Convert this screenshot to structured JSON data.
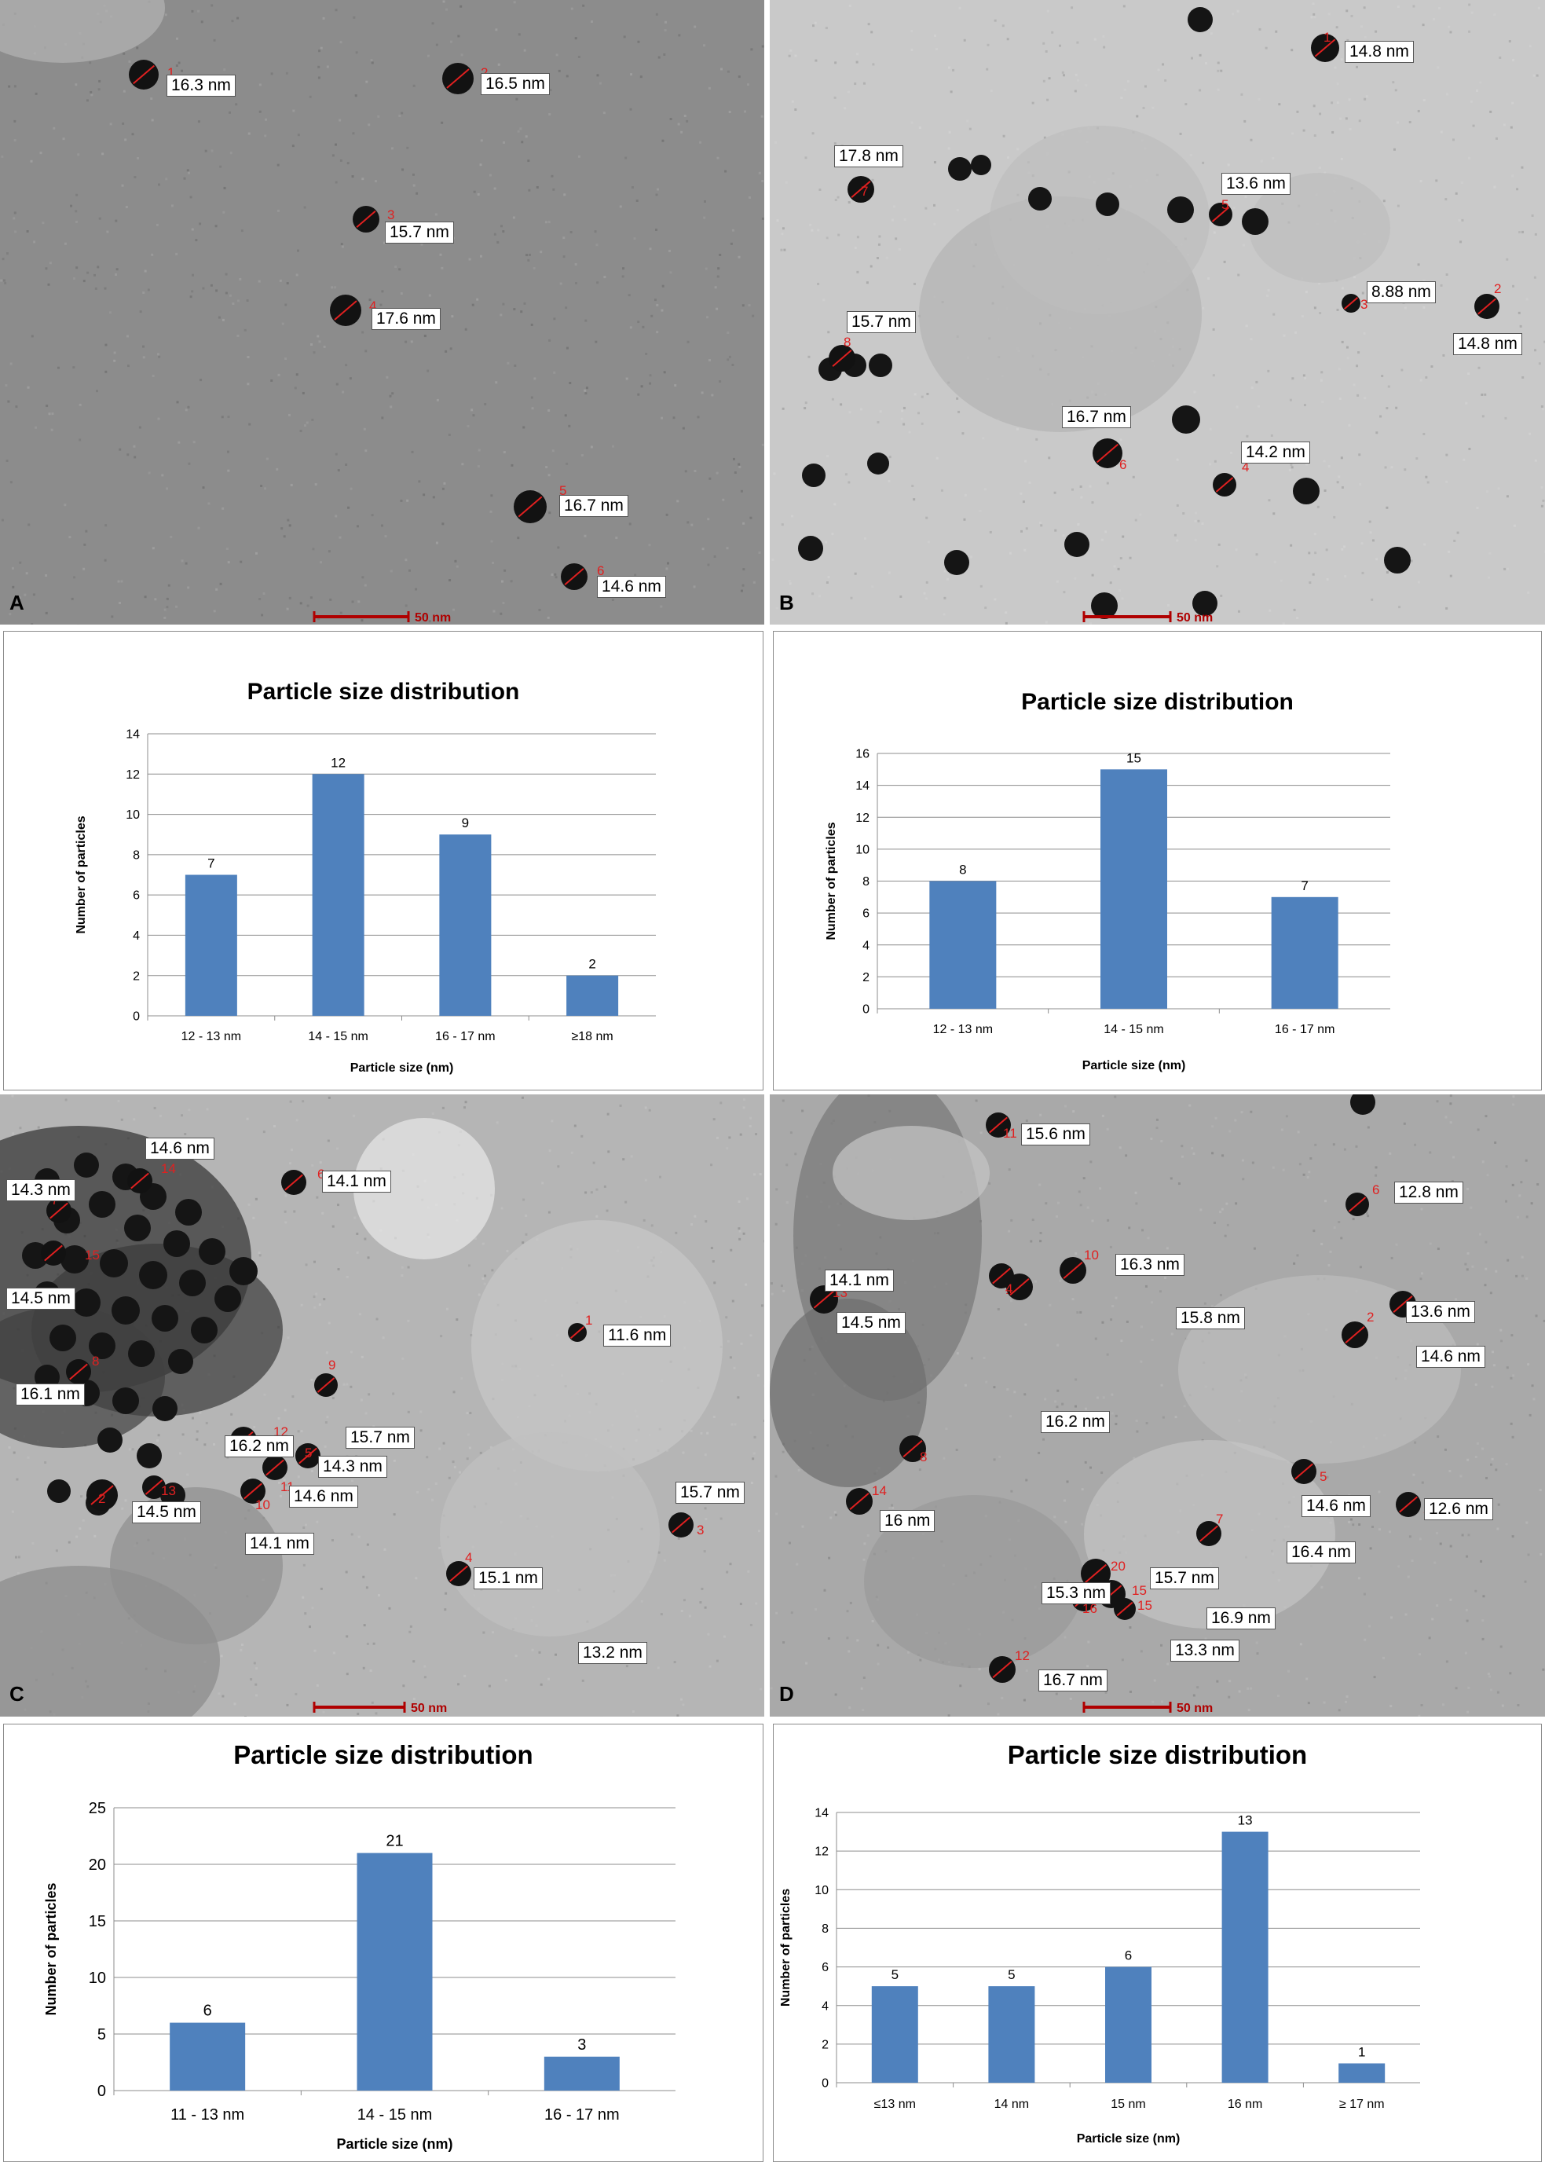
{
  "tem_panels": [
    {
      "letter": "A",
      "scale_bar_label": "50 nm",
      "tone": "#8c8c8c",
      "particles": [
        {
          "id": "1",
          "size": "16.3 nm"
        },
        {
          "id": "2",
          "size": "16.5 nm"
        },
        {
          "id": "3",
          "size": "15.7 nm"
        },
        {
          "id": "4",
          "size": "17.6 nm"
        },
        {
          "id": "5",
          "size": "16.7 nm"
        },
        {
          "id": "6",
          "size": "14.6 nm"
        }
      ]
    },
    {
      "letter": "B",
      "scale_bar_label": "50 nm",
      "tone": "#c9c9c9",
      "particles": [
        {
          "id": "1",
          "size": "14.8 nm"
        },
        {
          "id": "7",
          "size": "17.8 nm"
        },
        {
          "id": "5",
          "size": "13.6 nm"
        },
        {
          "id": "3",
          "size": "8.88 nm"
        },
        {
          "id": "2",
          "size": "14.8 nm"
        },
        {
          "id": "8",
          "size": "15.7 nm"
        },
        {
          "id": "6",
          "size": "16.7 nm"
        },
        {
          "id": "4",
          "size": "14.2 nm"
        }
      ]
    },
    {
      "letter": "C",
      "scale_bar_label": "50 nm",
      "tone": "#b5b5b5",
      "particles": [
        {
          "id": "14",
          "size": "14.6 nm"
        },
        {
          "id": "6",
          "size": "14.1 nm"
        },
        {
          "id": "7",
          "size": "14.3 nm"
        },
        {
          "id": "15",
          "size": "14.5 nm"
        },
        {
          "id": "1",
          "size": "11.6 nm"
        },
        {
          "id": "8",
          "size": "16.1 nm"
        },
        {
          "id": "9",
          "size": "15.7 nm"
        },
        {
          "id": "12",
          "size": "16.2 nm"
        },
        {
          "id": "5",
          "size": "14.3 nm"
        },
        {
          "id": "11",
          "size": "14.6 nm"
        },
        {
          "id": "13",
          "size": "14.5 nm"
        },
        {
          "id": "10",
          "size": "14.1 nm"
        },
        {
          "id": "2",
          "size": "15.7 nm"
        },
        {
          "id": "3",
          "size": "15.1 nm"
        },
        {
          "id": "4",
          "size": "13.2 nm"
        }
      ]
    },
    {
      "letter": "D",
      "scale_bar_label": "50 nm",
      "tone": "#a9a9a9",
      "particles": [
        {
          "id": "11",
          "size": "15.6 nm"
        },
        {
          "id": "6",
          "size": "12.8 nm"
        },
        {
          "id": "10",
          "size": "16.3 nm"
        },
        {
          "id": "14",
          "size": "14.1 nm"
        },
        {
          "id": "13",
          "size": "14.5 nm"
        },
        {
          "id": "9",
          "size": "15.8 nm"
        },
        {
          "id": "2",
          "size": "13.6 nm"
        },
        {
          "id": "4",
          "size": "14.6 nm"
        },
        {
          "id": "8",
          "size": "16.2 nm"
        },
        {
          "id": "14",
          "size": "16 nm"
        },
        {
          "id": "5",
          "size": "14.6 nm"
        },
        {
          "id": "3",
          "size": "12.6 nm"
        },
        {
          "id": "7",
          "size": "16.4 nm"
        },
        {
          "id": "20",
          "size": "15.7 nm"
        },
        {
          "id": "15",
          "size": "15.3 nm"
        },
        {
          "id": "15",
          "size": "16.9 nm"
        },
        {
          "id": "16",
          "size": "13.3 nm"
        },
        {
          "id": "12",
          "size": "16.7 nm"
        }
      ]
    }
  ],
  "chart_data": [
    {
      "type": "bar",
      "title": "Particle size distribution",
      "xlabel": "Particle size (nm)",
      "ylabel": "Number of particles",
      "categories": [
        "12 - 13 nm",
        "14 - 15 nm",
        "16 - 17 nm",
        "≥18 nm"
      ],
      "values": [
        7,
        12,
        9,
        2
      ],
      "ylim": [
        0,
        14
      ],
      "yticks": [
        0,
        2,
        4,
        6,
        8,
        10,
        12,
        14
      ],
      "grid": true,
      "bar_color": "#4f81bd"
    },
    {
      "type": "bar",
      "title": "Particle size distribution",
      "xlabel": "Particle size (nm)",
      "ylabel": "Number of particles",
      "categories": [
        "12 - 13 nm",
        "14 - 15 nm",
        "16 - 17 nm"
      ],
      "values": [
        8,
        15,
        7
      ],
      "ylim": [
        0,
        16
      ],
      "yticks": [
        0,
        2,
        4,
        6,
        8,
        10,
        12,
        14,
        16
      ],
      "grid": true,
      "bar_color": "#4f81bd"
    },
    {
      "type": "bar",
      "title": "Particle size distribution",
      "xlabel": "Particle size (nm)",
      "ylabel": "Number of particles",
      "categories": [
        "11 - 13 nm",
        "14 - 15 nm",
        "16 - 17 nm"
      ],
      "values": [
        6,
        21,
        3
      ],
      "ylim": [
        0,
        25
      ],
      "yticks": [
        0,
        5,
        10,
        15,
        20,
        25
      ],
      "grid": true,
      "bar_color": "#4f81bd"
    },
    {
      "type": "bar",
      "title": "Particle size distribution",
      "xlabel": "Particle size (nm)",
      "ylabel": "Number of particles",
      "categories": [
        "≤13  nm",
        "14  nm",
        "15 nm",
        "16 nm",
        "≥ 17 nm"
      ],
      "values": [
        5,
        5,
        6,
        13,
        1
      ],
      "ylim": [
        0,
        14
      ],
      "yticks": [
        0,
        2,
        4,
        6,
        8,
        10,
        12,
        14
      ],
      "grid": true,
      "bar_color": "#4f81bd"
    }
  ]
}
